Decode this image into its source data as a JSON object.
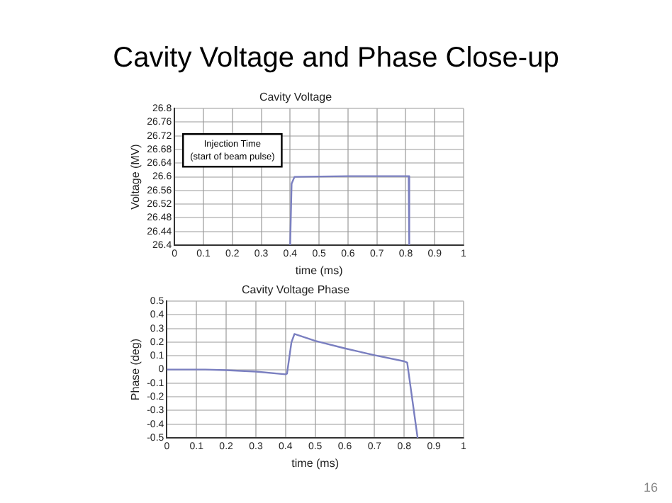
{
  "chart_data": [
    {
      "type": "other",
      "title": "Cavity Voltage and Phase Close-up",
      "annotations": [
        "16"
      ]
    },
    {
      "type": "line",
      "title": "Cavity Voltage",
      "xlabel": "time (ms)",
      "ylabel": "Voltage (MV)",
      "xlim": [
        0,
        1
      ],
      "xticks": [
        0,
        0.1,
        0.2,
        0.3,
        0.4,
        0.5,
        0.6,
        0.7,
        0.8,
        0.9,
        1
      ],
      "ylim": [
        26.4,
        26.8
      ],
      "yticks": [
        26.4,
        26.44,
        26.48,
        26.52,
        26.56,
        26.6,
        26.64,
        26.68,
        26.72,
        26.76,
        26.8
      ],
      "grid": true,
      "marker": "none",
      "line_style": "solid",
      "annotations": [
        "Injection Time\n(start of beam pulse)"
      ],
      "series": [
        {
          "color": "#7a7fc0",
          "x": [
            0.4,
            0.405,
            0.415,
            0.6,
            0.81,
            0.812
          ],
          "values": [
            26.4,
            26.58,
            26.6,
            26.602,
            26.602,
            26.4
          ]
        }
      ]
    },
    {
      "type": "line",
      "title": "Cavity Voltage Phase",
      "xlabel": "time (ms)",
      "ylabel": "Phase (deg)",
      "xlim": [
        0,
        1
      ],
      "xticks": [
        0,
        0.1,
        0.2,
        0.3,
        0.4,
        0.5,
        0.6,
        0.7,
        0.8,
        0.9,
        1
      ],
      "ylim": [
        -0.5,
        0.5
      ],
      "yticks": [
        -0.5,
        -0.4,
        -0.3,
        -0.2,
        -0.1,
        0,
        0.1,
        0.2,
        0.3,
        0.4,
        0.5
      ],
      "grid": true,
      "marker": "none",
      "line_style": "solid",
      "series": [
        {
          "color": "#7a7fc0",
          "x": [
            0,
            0.13,
            0.2,
            0.3,
            0.4,
            0.405,
            0.42,
            0.43,
            0.5,
            0.6,
            0.7,
            0.8,
            0.81,
            0.845
          ],
          "values": [
            0,
            0,
            -0.005,
            -0.015,
            -0.035,
            -0.03,
            0.2,
            0.26,
            0.21,
            0.155,
            0.105,
            0.06,
            0.05,
            -0.5
          ]
        }
      ]
    }
  ]
}
